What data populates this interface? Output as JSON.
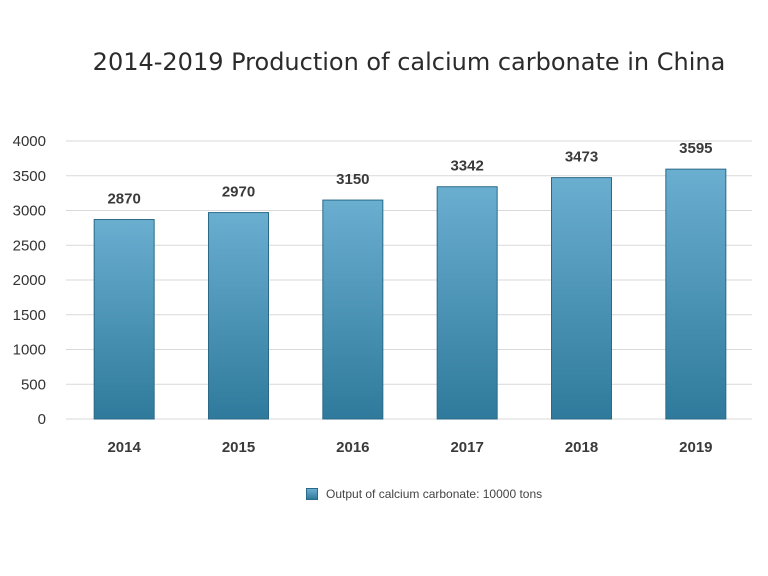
{
  "chart_data": {
    "type": "bar",
    "title": "2014-2019 Production of calcium carbonate in China",
    "categories": [
      "2014",
      "2015",
      "2016",
      "2017",
      "2018",
      "2019"
    ],
    "series": [
      {
        "name": "Output of calcium carbonate: 10000 tons",
        "values": [
          2870,
          2970,
          3150,
          3342,
          3473,
          3595
        ]
      }
    ],
    "data_labels": [
      "2870",
      "2970",
      "3150",
      "3342",
      "3473",
      "3595"
    ],
    "y_ticks": [
      "0",
      "500",
      "1000",
      "1500",
      "2000",
      "2500",
      "3000",
      "3500",
      "4000"
    ],
    "ylim": [
      0,
      4000
    ],
    "xlabel": "",
    "ylabel": "",
    "grid": true,
    "legend_position": "bottom",
    "colors": {
      "bar_top": "#6aaed0",
      "bar_bottom": "#2f7a9c",
      "bar_edge": "#2a6a88",
      "grid": "#d9d9d9"
    }
  }
}
